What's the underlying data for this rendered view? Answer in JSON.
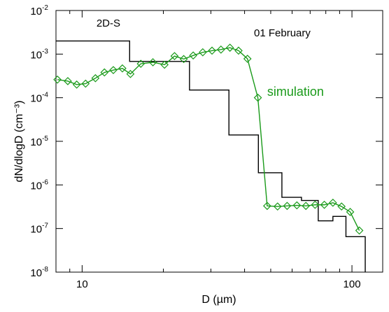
{
  "chart_data": {
    "type": "line",
    "title": "",
    "xlabel": "D (µm)",
    "ylabel": "dN/dlogD (cm⁻³)",
    "x_scale": "log",
    "y_scale": "log",
    "xlim": [
      8,
      130
    ],
    "ylim": [
      1e-08,
      0.01
    ],
    "grid": false,
    "x_ticks": [
      {
        "value": 10,
        "label": "10"
      },
      {
        "value": 100,
        "label": "100"
      }
    ],
    "y_ticks": [
      {
        "value": 1e-08,
        "base": "10",
        "exp": "-8"
      },
      {
        "value": 1e-07,
        "base": "10",
        "exp": "-7"
      },
      {
        "value": 1e-06,
        "base": "10",
        "exp": "-6"
      },
      {
        "value": 1e-05,
        "base": "10",
        "exp": "-5"
      },
      {
        "value": 0.0001,
        "base": "10",
        "exp": "-4"
      },
      {
        "value": 0.001,
        "base": "10",
        "exp": "-3"
      },
      {
        "value": 0.01,
        "base": "10",
        "exp": "-2"
      }
    ],
    "annotations": {
      "date": "01 February"
    },
    "series": [
      {
        "name": "2D-S",
        "color": "#000000",
        "style": "step",
        "label_at": {
          "x": 11.3,
          "y": 0.0043
        },
        "bins": [
          {
            "x0": 8,
            "x1": 15,
            "y": 0.002
          },
          {
            "x0": 15,
            "x1": 25,
            "y": 0.00068
          },
          {
            "x0": 25,
            "x1": 35,
            "y": 0.00015
          },
          {
            "x0": 35,
            "x1": 45,
            "y": 1.4e-05
          },
          {
            "x0": 45,
            "x1": 55,
            "y": 1.9e-06
          },
          {
            "x0": 55,
            "x1": 65,
            "y": 5.2e-07
          },
          {
            "x0": 65,
            "x1": 75,
            "y": 4.4e-07
          },
          {
            "x0": 75,
            "x1": 85,
            "y": 1.5e-07
          },
          {
            "x0": 85,
            "x1": 95,
            "y": 1.9e-07
          },
          {
            "x0": 95,
            "x1": 112,
            "y": 6.5e-08
          },
          {
            "x0": 112,
            "x1": 112,
            "y": 1e-08
          }
        ]
      },
      {
        "name": "simulation",
        "color": "#1a9a1a",
        "style": "line-diamond",
        "label_at": {
          "x": 48.5,
          "y": 0.00011
        },
        "x": [
          8.1,
          8.85,
          9.55,
          10.3,
          11.2,
          12.1,
          13.05,
          14.1,
          15.1,
          16.5,
          18.3,
          20.2,
          22.0,
          23.8,
          25.8,
          28.0,
          30.3,
          32.7,
          35.3,
          38.0,
          41.0,
          44.8,
          48.5,
          53.0,
          57.5,
          62.5,
          67.5,
          73.0,
          79.0,
          85.0,
          91.5,
          98.5,
          106.5
        ],
        "y": [
          0.00026,
          0.00024,
          0.0002,
          0.00021,
          0.00028,
          0.00038,
          0.00043,
          0.00047,
          0.00035,
          0.0006,
          0.00065,
          0.00057,
          0.0009,
          0.00077,
          0.00093,
          0.0011,
          0.0012,
          0.00127,
          0.0014,
          0.0012,
          0.00078,
          0.0001,
          3.3e-07,
          3.2e-07,
          3.3e-07,
          3.4e-07,
          3.3e-07,
          3.5e-07,
          3.5e-07,
          3.9e-07,
          3.2e-07,
          2.4e-07,
          9e-08
        ]
      }
    ]
  }
}
